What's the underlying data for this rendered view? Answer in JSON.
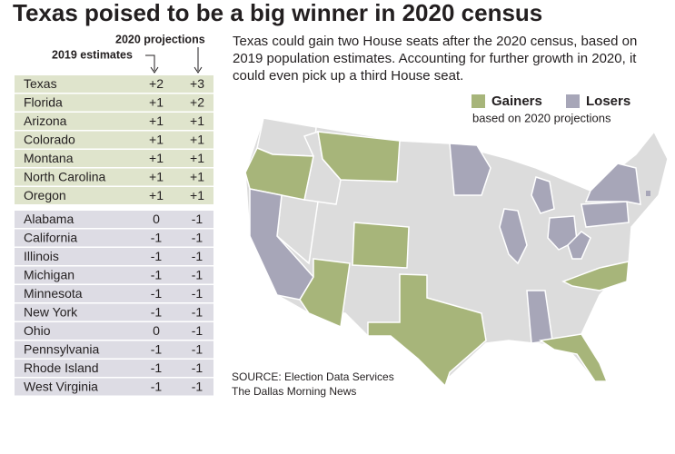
{
  "title": "Texas poised to be a big winner in 2020 census",
  "column_headers": {
    "projections": "2020 projections",
    "estimates": "2019 estimates"
  },
  "description": "Texas could gain two House seats after the 2020 census, based on 2019 population estimates. Accounting for further growth in 2020, it could even pick up a third House seat.",
  "legend": {
    "gainers": {
      "label": "Gainers",
      "color": "#a7b57a"
    },
    "losers": {
      "label": "Losers",
      "color": "#a7a6b8"
    },
    "note": "based on 2020 projections"
  },
  "table": {
    "gainers": [
      [
        "Texas",
        "+2",
        "+3"
      ],
      [
        "Florida",
        "+1",
        "+2"
      ],
      [
        "Arizona",
        "+1",
        "+1"
      ],
      [
        "Colorado",
        "+1",
        "+1"
      ],
      [
        "Montana",
        "+1",
        "+1"
      ],
      [
        "North Carolina",
        "+1",
        "+1"
      ],
      [
        "Oregon",
        "+1",
        "+1"
      ]
    ],
    "losers": [
      [
        "Alabama",
        "0",
        "-1"
      ],
      [
        "California",
        "-1",
        "-1"
      ],
      [
        "Illinois",
        "-1",
        "-1"
      ],
      [
        "Michigan",
        "-1",
        "-1"
      ],
      [
        "Minnesota",
        "-1",
        "-1"
      ],
      [
        "New York",
        "-1",
        "-1"
      ],
      [
        "Ohio",
        "0",
        "-1"
      ],
      [
        "Pennsylvania",
        "-1",
        "-1"
      ],
      [
        "Rhode Island",
        "-1",
        "-1"
      ],
      [
        "West Virginia",
        "-1",
        "-1"
      ]
    ]
  },
  "source": [
    "SOURCE: Election Data Services",
    "The Dallas Morning News"
  ]
}
